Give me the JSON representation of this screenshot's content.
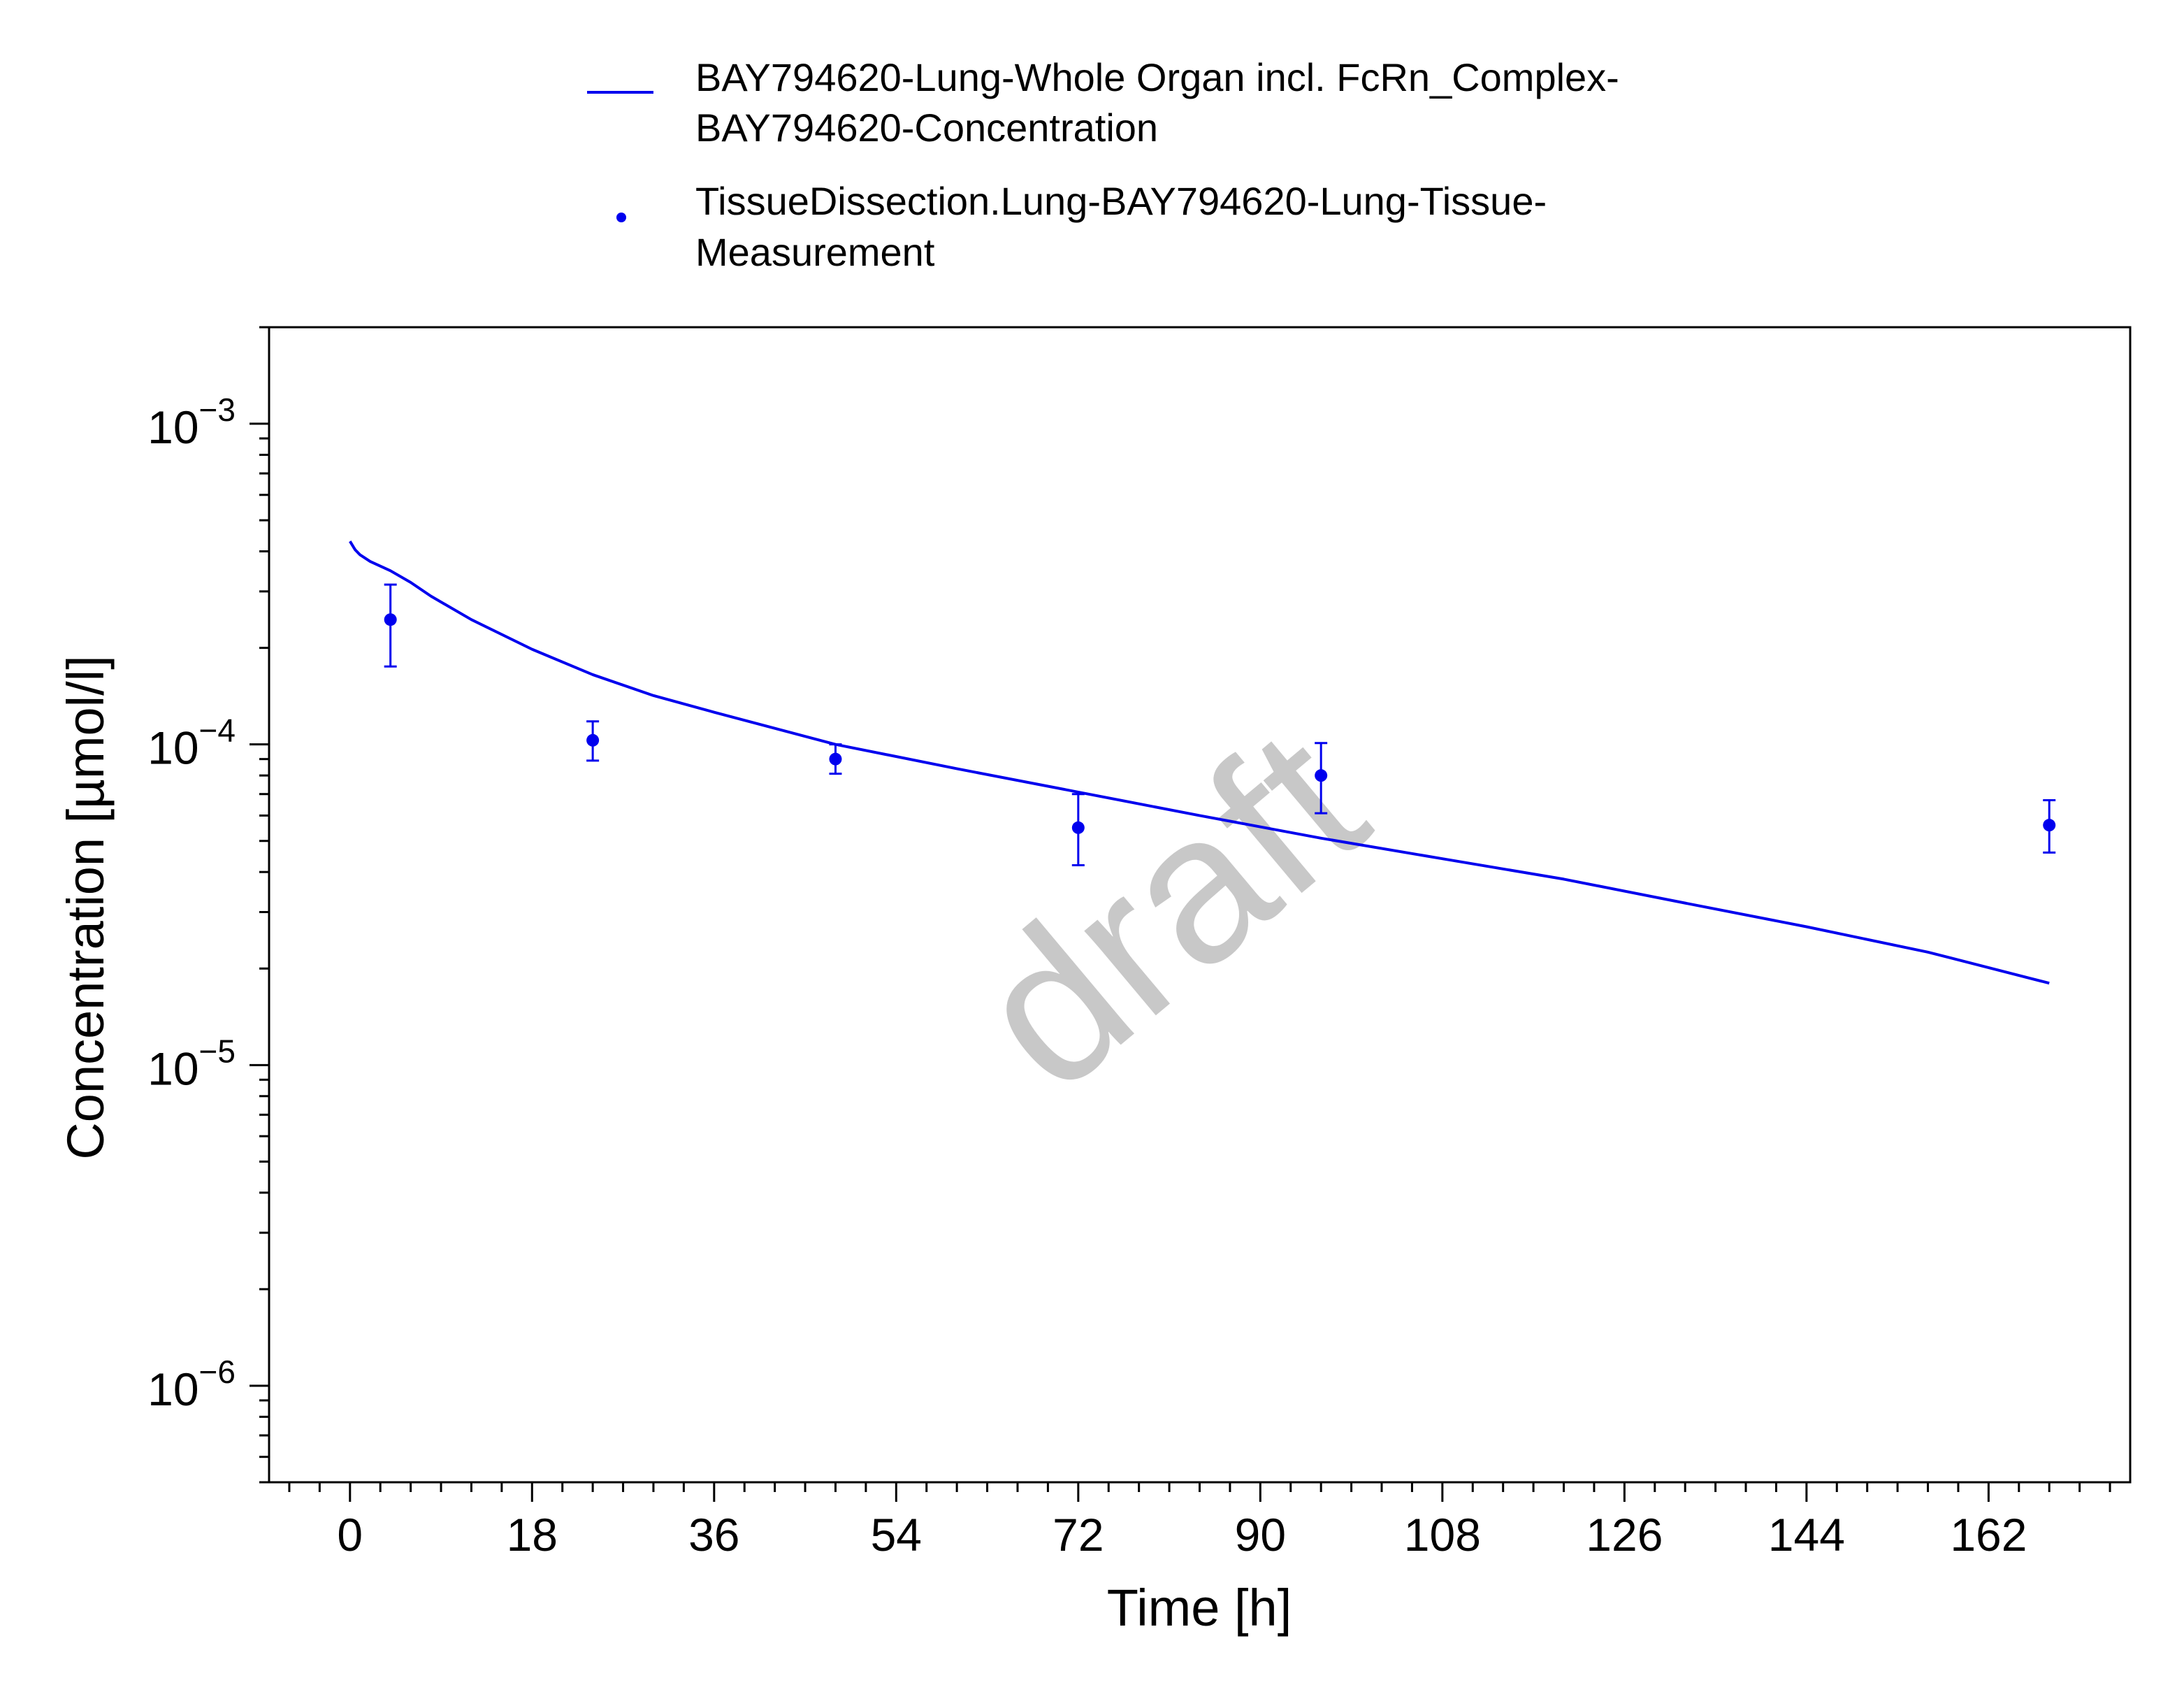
{
  "chart_data": {
    "type": "line",
    "title": "",
    "xlabel": "Time [h]",
    "ylabel": "Concentration [µmol/l]",
    "xlim": [
      -8,
      176
    ],
    "ylim": [
      5e-07,
      0.002
    ],
    "yscale": "log",
    "x_ticks": [
      0,
      18,
      36,
      54,
      72,
      90,
      108,
      126,
      144,
      162
    ],
    "y_ticks": [
      {
        "value": 1e-06,
        "mantissa": "10",
        "exponent": "−6"
      },
      {
        "value": 1e-05,
        "mantissa": "10",
        "exponent": "−5"
      },
      {
        "value": 0.0001,
        "mantissa": "10",
        "exponent": "−4"
      },
      {
        "value": 0.001,
        "mantissa": "10",
        "exponent": "−3"
      }
    ],
    "grid": false,
    "legend_position": "top",
    "watermark": "draft",
    "series": [
      {
        "name": "BAY794620-Lung-Whole Organ incl. FcRn_Complex-BAY794620-Concentration",
        "legend_lines": [
          "BAY794620-Lung-Whole Organ incl. FcRn_Complex-",
          "BAY794620-Concentration"
        ],
        "kind": "line",
        "color": "#0000ee",
        "x": [
          0,
          0.5,
          1,
          2,
          4,
          6,
          8,
          12,
          18,
          24,
          30,
          36,
          48,
          60,
          72,
          84,
          96,
          108,
          120,
          132,
          144,
          156,
          168
        ],
        "y": [
          0.00043,
          0.000405,
          0.00039,
          0.000372,
          0.000348,
          0.00032,
          0.00029,
          0.000245,
          0.000198,
          0.000165,
          0.000142,
          0.000126,
          0.0001,
          8.4e-05,
          7.1e-05,
          6e-05,
          5.1e-05,
          4.4e-05,
          3.8e-05,
          3.2e-05,
          2.7e-05,
          2.25e-05,
          1.8e-05
        ]
      },
      {
        "name": "TissueDissection.Lung-BAY794620-Lung-Tissue-Measurement",
        "legend_lines": [
          "TissueDissection.Lung-BAY794620-Lung-Tissue-",
          "Measurement"
        ],
        "kind": "scatter",
        "color": "#0000ee",
        "x": [
          4,
          24,
          48,
          72,
          96,
          168
        ],
        "y": [
          0.000245,
          0.000103,
          9e-05,
          5.5e-05,
          8e-05,
          5.6e-05
        ],
        "y_low": [
          0.000175,
          8.9e-05,
          8.1e-05,
          4.2e-05,
          6.1e-05,
          4.6e-05
        ],
        "y_high": [
          0.000315,
          0.000118,
          0.0001,
          7e-05,
          0.000101,
          6.7e-05
        ]
      }
    ]
  }
}
